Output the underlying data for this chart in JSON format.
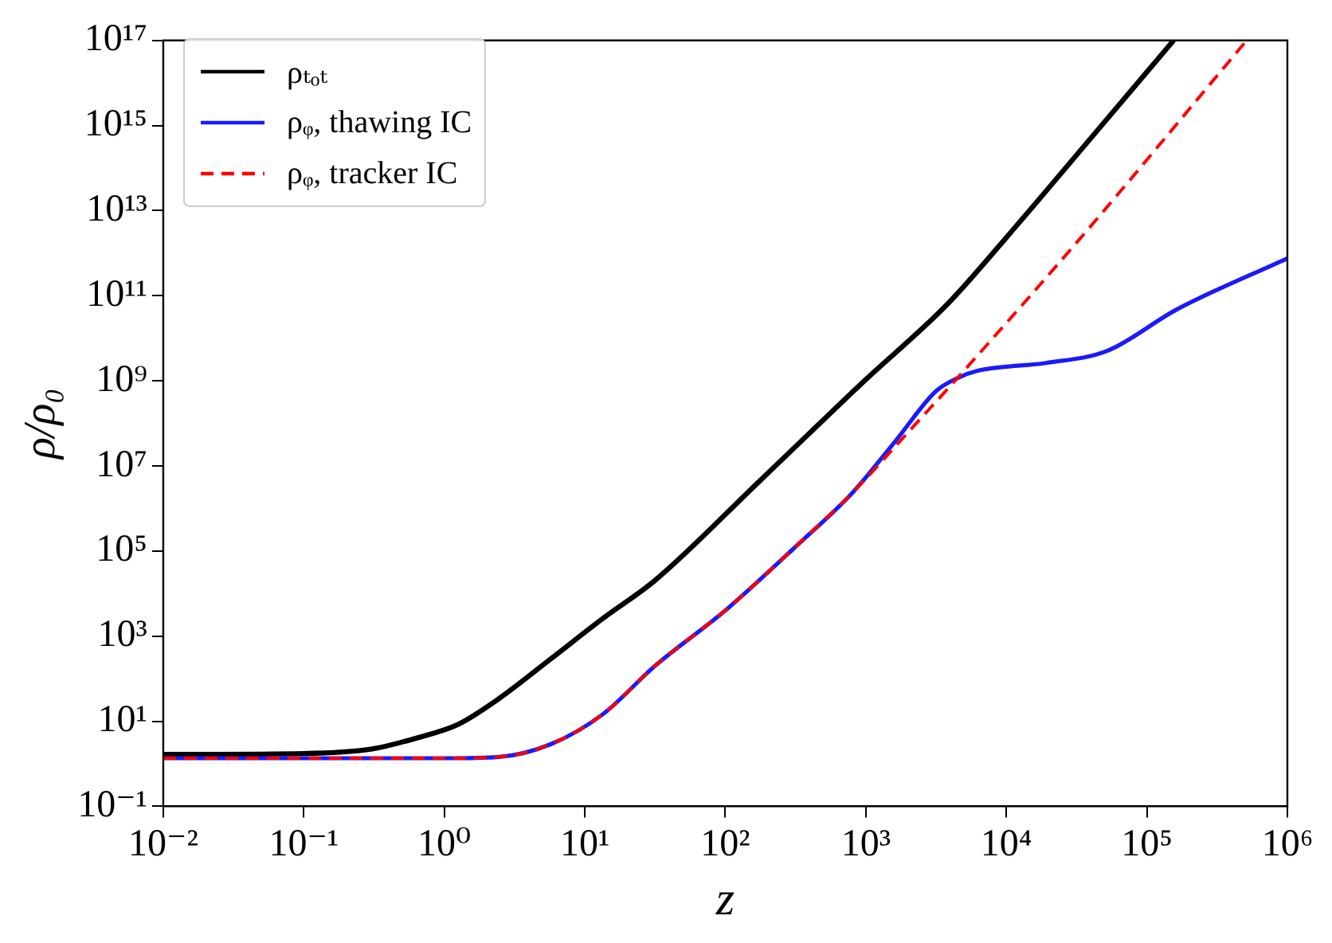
{
  "chart_data": {
    "type": "line",
    "xlabel": "z",
    "ylabel": "ρ/ρ₀",
    "log": "xy",
    "grid": false,
    "legend": "top left",
    "xlim": [
      0.01,
      1000000
    ],
    "ylim": [
      0.1,
      1e+17
    ],
    "xticks": [
      {
        "value": 0.01,
        "label": "10⁻²"
      },
      {
        "value": 0.1,
        "label": "10⁻¹"
      },
      {
        "value": 1,
        "label": "10⁰"
      },
      {
        "value": 10,
        "label": "10¹"
      },
      {
        "value": 100,
        "label": "10²"
      },
      {
        "value": 1000,
        "label": "10³"
      },
      {
        "value": 10000,
        "label": "10⁴"
      },
      {
        "value": 100000,
        "label": "10⁵"
      },
      {
        "value": 1000000,
        "label": "10⁶"
      }
    ],
    "yticks": [
      {
        "value": 0.1,
        "label": "10⁻¹"
      },
      {
        "value": 10,
        "label": "10¹"
      },
      {
        "value": 1000,
        "label": "10³"
      },
      {
        "value": 100000,
        "label": "10⁵"
      },
      {
        "value": 10000000,
        "label": "10⁷"
      },
      {
        "value": 1000000000,
        "label": "10⁹"
      },
      {
        "value": 100000000000,
        "label": "10¹¹"
      },
      {
        "value": 10000000000000,
        "label": "10¹³"
      },
      {
        "value": 1000000000000000,
        "label": "10¹⁵"
      },
      {
        "value": 100000000000000000,
        "label": "10¹⁷"
      }
    ],
    "series": [
      {
        "name": "ρₜₒₜ",
        "color": "#000000",
        "line_style": "solid",
        "x": [
          0.01,
          0.1,
          0.3,
          0.63,
          1.26,
          2.45,
          5.75,
          13.5,
          31.6,
          174,
          977,
          3800,
          11500,
          39800,
          155000
        ],
        "values": [
          1.66,
          1.74,
          2.2,
          4,
          8.5,
          34,
          295,
          2630,
          20400,
          4300000,
          1000000000,
          63000000000,
          4000000000000,
          500000000000000,
          100000000000000000
        ]
      },
      {
        "name": "ρᵩ, thawing IC",
        "color": "#1a1aff",
        "line_style": "solid",
        "x": [
          0.01,
          0.1,
          1,
          2.45,
          5.75,
          13.5,
          31.6,
          100,
          316,
          813,
          1620,
          3160,
          4470,
          6310,
          19100,
          52500,
          162000,
          1000000
        ],
        "values": [
          1.35,
          1.35,
          1.35,
          1.45,
          2.9,
          14.8,
          200,
          4000,
          126000,
          2450000,
          38000000,
          575000000,
          1150000000,
          1740000000,
          2630000000,
          5100000000,
          47000000000,
          760000000000
        ]
      },
      {
        "name": "ρᵩ, tracker IC",
        "color": "#ff0000",
        "line_style": "dashed",
        "x": [
          0.01,
          0.1,
          1,
          2.45,
          5.75,
          13.5,
          31.6,
          100,
          316,
          813,
          2000,
          4470,
          38000,
          513000
        ],
        "values": [
          1.35,
          1.35,
          1.35,
          1.45,
          2.9,
          14.8,
          200,
          4000,
          126000,
          2450000,
          62000000,
          1150000000,
          3600000000000,
          100000000000000000
        ]
      }
    ]
  }
}
